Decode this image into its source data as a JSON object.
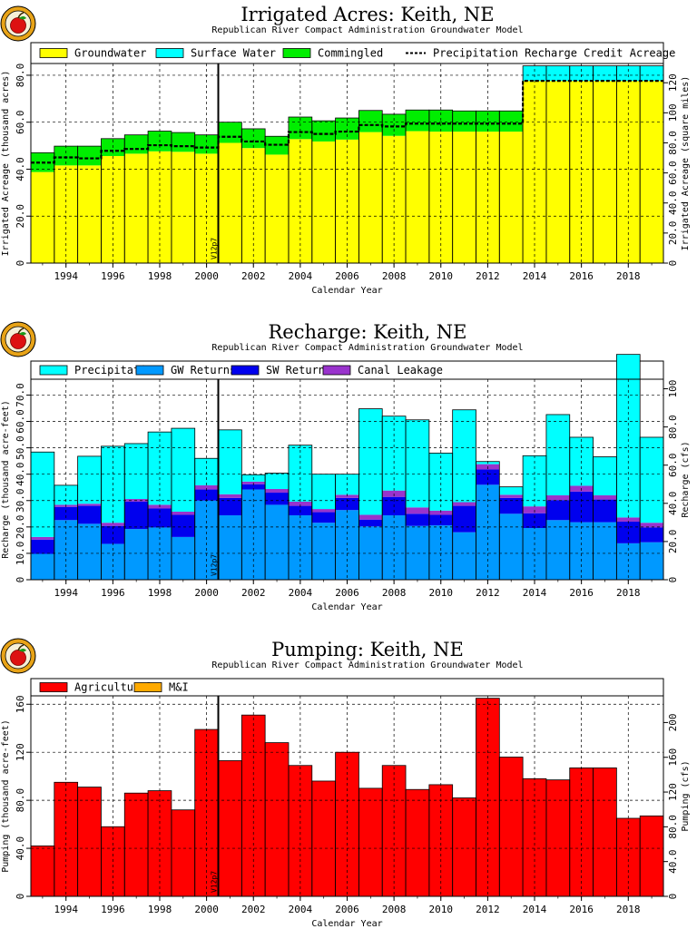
{
  "chart_data": [
    {
      "type": "area",
      "title": "Irrigated Acres: Keith, NE",
      "subtitle": "Republican River Compact Administration Groundwater Model",
      "xlabel": "Calendar Year",
      "ylabel": "Irrigated Acreage (thousand acres)",
      "y2label": "Irrigated Acreage (square miles)",
      "xlim": [
        1992.5,
        2019.5
      ],
      "ylim": [
        0,
        85
      ],
      "y2lim": [
        0,
        132.8
      ],
      "xticks": [
        1994,
        1996,
        1998,
        2000,
        2002,
        2004,
        2006,
        2008,
        2010,
        2012,
        2014,
        2016,
        2018
      ],
      "yticks": [
        0,
        20.0,
        40.0,
        60.0,
        80.0
      ],
      "ytick_labels": [
        "0",
        "20.0",
        "40.0",
        "60.0",
        "80.0"
      ],
      "y2ticks": [
        0,
        20.0,
        40.0,
        60.0,
        80.0,
        100,
        120
      ],
      "y2tick_labels": [
        "0",
        "20.0",
        "40.0",
        "60.0",
        "80.0",
        "100",
        "120"
      ],
      "marker": {
        "x": 2001,
        "label": "V12p7"
      },
      "legend": "top",
      "x": [
        1993,
        1994,
        1995,
        1996,
        1997,
        1998,
        1999,
        2000,
        2001,
        2002,
        2003,
        2004,
        2005,
        2006,
        2007,
        2008,
        2009,
        2010,
        2011,
        2012,
        2013,
        2014,
        2015,
        2016,
        2017,
        2018,
        2019
      ],
      "series": [
        {
          "name": "Groundwater",
          "color": "#ffff00",
          "values": [
            38.8,
            41.6,
            41.6,
            45.6,
            46.6,
            47.6,
            47.4,
            46.6,
            51.2,
            49.0,
            46.2,
            52.8,
            51.8,
            52.6,
            55.8,
            54.2,
            56.2,
            56.0,
            56.0,
            56.0,
            56.0,
            77.6,
            77.6,
            77.6,
            77.6,
            77.6,
            77.6
          ]
        },
        {
          "name": "Surface Water",
          "color": "#00ffff",
          "values": [
            0,
            0,
            0,
            0,
            0,
            0,
            0,
            0,
            0,
            0,
            0,
            0,
            0,
            0,
            0,
            0,
            0,
            0,
            0,
            0,
            0,
            6.4,
            6.4,
            6.4,
            6.4,
            6.4,
            6.4
          ]
        },
        {
          "name": "Commingled",
          "color": "#00ee00",
          "values": [
            8.2,
            8.2,
            8.2,
            7.4,
            8.0,
            8.6,
            8.2,
            8.0,
            8.8,
            8.2,
            7.8,
            9.4,
            8.8,
            9.2,
            9.2,
            9.2,
            9.0,
            9.2,
            8.8,
            8.8,
            8.8,
            0,
            0,
            0,
            0,
            0,
            0
          ]
        }
      ],
      "line": {
        "name": "Precipitation Recharge Credit Acreage",
        "values": [
          42.8,
          45.0,
          44.6,
          47.8,
          48.6,
          50.2,
          49.8,
          49.2,
          53.8,
          51.8,
          50.4,
          55.8,
          55.0,
          56.0,
          58.8,
          58.2,
          59.4,
          59.4,
          59.4,
          59.4,
          59.4,
          77.6,
          77.6,
          77.6,
          77.6,
          77.6,
          77.6
        ]
      }
    },
    {
      "type": "area",
      "title": "Recharge: Keith, NE",
      "subtitle": "Republican River Compact Administration Groundwater Model",
      "xlabel": "Calendar Year",
      "ylabel": "Recharge (thousand acre-feet)",
      "y2label": "Recharge (cfs)",
      "xlim": [
        1992.5,
        2019.5
      ],
      "ylim": [
        0,
        76
      ],
      "y2lim": [
        0,
        105
      ],
      "xticks": [
        1994,
        1996,
        1998,
        2000,
        2002,
        2004,
        2006,
        2008,
        2010,
        2012,
        2014,
        2016,
        2018
      ],
      "yticks": [
        0,
        10.0,
        20.0,
        30.0,
        40.0,
        50.0,
        60.0,
        70.0
      ],
      "ytick_labels": [
        "0",
        "10.0",
        "20.0",
        "30.0",
        "40.0",
        "50.0",
        "60.0",
        "70.0"
      ],
      "y2ticks": [
        0,
        20.0,
        40.0,
        60.0,
        80.0,
        100
      ],
      "y2tick_labels": [
        "0",
        "20.0",
        "40.0",
        "60.0",
        "80.0",
        "100"
      ],
      "marker": {
        "x": 2001,
        "label": "V12p7"
      },
      "legend": "top",
      "x": [
        1993,
        1994,
        1995,
        1996,
        1997,
        1998,
        1999,
        2000,
        2001,
        2002,
        2003,
        2004,
        2005,
        2006,
        2007,
        2008,
        2009,
        2010,
        2011,
        2012,
        2013,
        2014,
        2015,
        2016,
        2017,
        2018,
        2019
      ],
      "series": [
        {
          "name": "GW Returns",
          "color": "#0099ff",
          "values": [
            9.8,
            22.6,
            21.2,
            13.6,
            19.2,
            19.8,
            16.2,
            30.0,
            24.4,
            34.2,
            28.4,
            24.4,
            21.6,
            26.4,
            20.2,
            24.4,
            20.4,
            20.6,
            18.0,
            36.0,
            25.0,
            19.6,
            22.6,
            21.8,
            21.8,
            13.8,
            14.2
          ]
        },
        {
          "name": "SW Returns",
          "color": "#0000ee",
          "values": [
            5.4,
            5.0,
            6.8,
            6.8,
            10.4,
            7.2,
            8.4,
            4.2,
            6.6,
            2.0,
            4.6,
            3.6,
            4.0,
            4.6,
            2.6,
            7.0,
            4.6,
            4.0,
            10.0,
            5.8,
            6.0,
            5.6,
            7.6,
            11.6,
            8.6,
            8.2,
            5.6
          ]
        },
        {
          "name": "Canal Leakage",
          "color": "#9933cc",
          "values": [
            1.0,
            0.8,
            0.8,
            1.2,
            1.0,
            1.4,
            1.2,
            1.6,
            1.4,
            1.0,
            1.4,
            1.6,
            1.2,
            1.2,
            1.8,
            2.4,
            2.4,
            1.6,
            1.4,
            2.0,
            1.2,
            2.6,
            1.8,
            2.2,
            1.6,
            1.6,
            1.8
          ]
        },
        {
          "name": "Precipitation",
          "color": "#00ffff",
          "values": [
            32.2,
            7.4,
            18.0,
            29.0,
            21.0,
            27.6,
            31.6,
            10.2,
            24.4,
            2.6,
            6.0,
            21.4,
            13.2,
            7.8,
            40.2,
            28.2,
            33.2,
            21.8,
            35.0,
            1.0,
            3.0,
            19.2,
            30.6,
            18.4,
            14.6,
            61.8,
            32.4
          ]
        }
      ]
    },
    {
      "type": "bar",
      "title": "Pumping: Keith, NE",
      "subtitle": "Republican River Compact Administration Groundwater Model",
      "xlabel": "Calendar Year",
      "ylabel": "Pumping (thousand acre-feet)",
      "y2label": "Pumping (cfs)",
      "xlim": [
        1992.5,
        2019.5
      ],
      "ylim": [
        0,
        167
      ],
      "y2lim": [
        0,
        230.7
      ],
      "xticks": [
        1994,
        1996,
        1998,
        2000,
        2002,
        2004,
        2006,
        2008,
        2010,
        2012,
        2014,
        2016,
        2018
      ],
      "yticks": [
        0,
        40.0,
        80.0,
        120,
        160
      ],
      "ytick_labels": [
        "0",
        "40.0",
        "80.0",
        "120",
        "160"
      ],
      "y2ticks": [
        0,
        40.0,
        80.0,
        120,
        160,
        200
      ],
      "y2tick_labels": [
        "0",
        "40.0",
        "80.0",
        "120",
        "160",
        "200"
      ],
      "marker": {
        "x": 2001,
        "label": "V12p7"
      },
      "legend": "top",
      "x": [
        1993,
        1994,
        1995,
        1996,
        1997,
        1998,
        1999,
        2000,
        2001,
        2002,
        2003,
        2004,
        2005,
        2006,
        2007,
        2008,
        2009,
        2010,
        2011,
        2012,
        2013,
        2014,
        2015,
        2016,
        2017,
        2018,
        2019
      ],
      "series": [
        {
          "name": "Agricultural",
          "color": "#ff0000",
          "values": [
            42,
            95,
            91,
            58,
            86,
            88,
            72,
            139,
            113,
            151,
            128,
            109,
            96,
            120,
            90,
            109,
            89,
            93,
            82,
            165,
            116,
            98,
            97,
            107,
            107,
            65,
            67
          ]
        },
        {
          "name": "M&I",
          "color": "#ffaa00",
          "values": [
            0,
            0,
            0,
            0,
            0,
            0,
            0,
            0,
            0,
            0,
            0,
            0,
            0,
            0,
            0,
            0,
            0,
            0,
            0,
            0,
            0,
            0,
            0,
            0,
            0,
            0,
            0
          ]
        }
      ]
    }
  ]
}
